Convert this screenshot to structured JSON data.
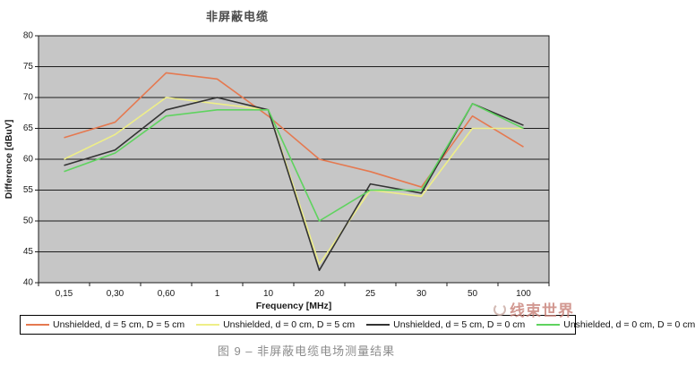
{
  "page": {
    "title": "非屏蔽电缆",
    "caption": "图 9 – 非屏蔽电缆电场测量结果",
    "watermark": "线束世界"
  },
  "chart_data": {
    "type": "line",
    "title": "非屏蔽电缆",
    "xlabel": "Frequency [MHz]",
    "ylabel": "Difference [dBuV]",
    "categories": [
      "0,15",
      "0,30",
      "0,60",
      "1",
      "10",
      "20",
      "25",
      "30",
      "50",
      "100"
    ],
    "ylim": [
      40,
      80
    ],
    "yticks": [
      40,
      45,
      50,
      55,
      60,
      65,
      70,
      75,
      80
    ],
    "grid": "horizontal",
    "plot_bg": "#c6c6c6",
    "legend_position": "bottom",
    "series": [
      {
        "name": "Unshielded, d = 5 cm, D = 5 cm",
        "color": "#e57950",
        "values": [
          63.5,
          66,
          74,
          73,
          67,
          60,
          58,
          55.5,
          67,
          62
        ]
      },
      {
        "name": "Unshielded, d = 0 cm, D = 5 cm",
        "color": "#eeee88",
        "values": [
          60,
          64,
          70,
          69,
          68,
          43,
          55,
          54,
          65,
          65
        ]
      },
      {
        "name": "Unshielded, d = 5 cm, D = 0 cm",
        "color": "#333333",
        "values": [
          59,
          61.5,
          68,
          70,
          68,
          42,
          56,
          54.5,
          69,
          65.5
        ]
      },
      {
        "name": "Unshielded, d = 0 cm, D = 0 cm",
        "color": "#5fd35f",
        "values": [
          58,
          61,
          67,
          68,
          68,
          50,
          55,
          55,
          69,
          65
        ]
      }
    ]
  }
}
